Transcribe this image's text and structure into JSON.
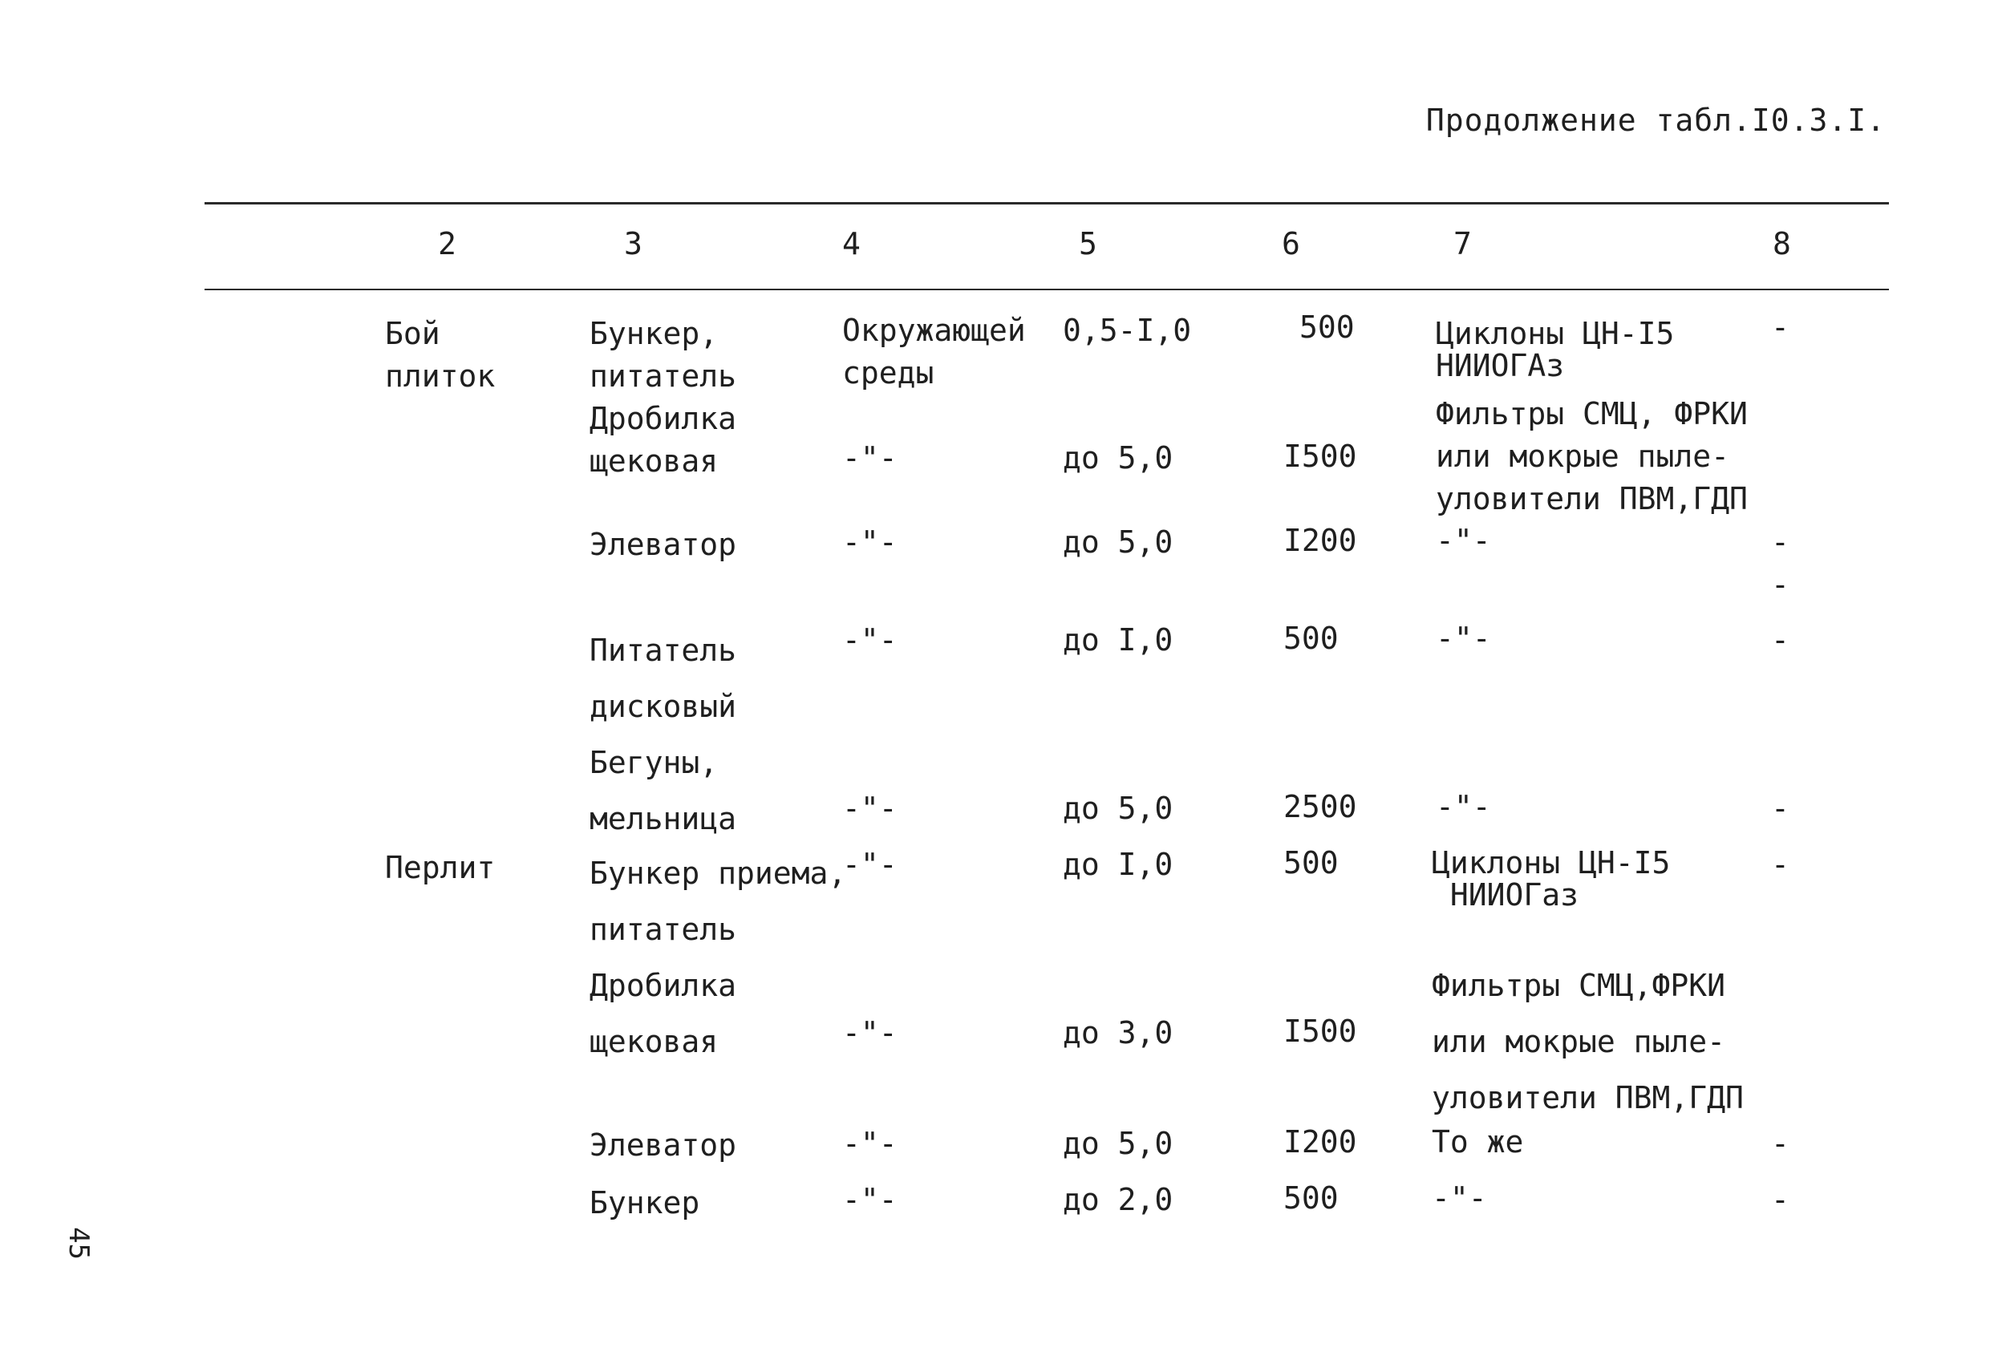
{
  "caption": "Продолжение табл.I0.3.I.",
  "page_number": "45",
  "columns": [
    "2",
    "3",
    "4",
    "5",
    "6",
    "7",
    "8"
  ],
  "rows": [
    {
      "material": "Бой\nплиток",
      "equipment": "Бункер,\nпитатель",
      "medium": "Окружающей\nсреды",
      "conc": "0,5-I,0",
      "volume": "500",
      "cleaning": "Циклоны ЦН-I5\nНИИОГАз",
      "col8": "-"
    },
    {
      "material": "",
      "equipment": "Дробилка\nщековая",
      "medium": "-\"-",
      "conc": "до 5,0",
      "volume": "I500",
      "cleaning": "Фильтры СМЦ, ФРКИ\nили мокрые пыле-\nуловители ПВМ,ГДП",
      "col8": ""
    },
    {
      "material": "",
      "equipment": "Элеватор",
      "medium": "-\"-",
      "conc": "до 5,0",
      "volume": "I200",
      "cleaning": "-\"-",
      "col8": "-\n-"
    },
    {
      "material": "",
      "equipment": "Питатель\nдисковый",
      "medium": "-\"-",
      "conc": "до I,0",
      "volume": "500",
      "cleaning": "-\"-",
      "col8": "-"
    },
    {
      "material": "",
      "equipment": "Бегуны,\nмельница",
      "medium": "-\"-",
      "conc": "до 5,0",
      "volume": "2500",
      "cleaning": "-\"-",
      "col8": "-"
    },
    {
      "material": "Перлит",
      "equipment": "Бункер приема,\nпитатель",
      "medium": "-\"-",
      "conc": "до I,0",
      "volume": "500",
      "cleaning": "Циклоны ЦН-I5\n НИИОГаз",
      "col8": "-"
    },
    {
      "material": "",
      "equipment": "Дробилка\nщековая",
      "medium": "-\"-",
      "conc": "до 3,0",
      "volume": "I500",
      "cleaning": "Фильтры СМЦ,ФРКИ\nили мокрые пыле-\nуловители ПВМ,ГДП",
      "col8": ""
    },
    {
      "material": "",
      "equipment": "Элеватор",
      "medium": "-\"-",
      "conc": "до 5,0",
      "volume": "I200",
      "cleaning": "То же",
      "col8": "-"
    },
    {
      "material": "",
      "equipment": "Бункер",
      "medium": "-\"-",
      "conc": "до 2,0",
      "volume": "500",
      "cleaning": "-\"-",
      "col8": "-"
    }
  ]
}
